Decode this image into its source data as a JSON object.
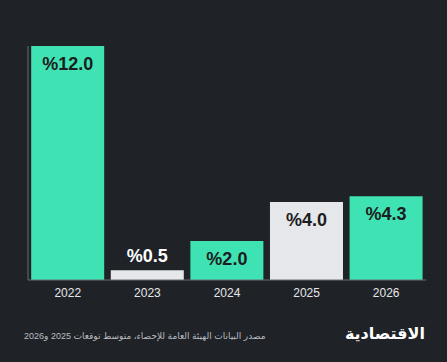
{
  "chart_data": {
    "type": "bar",
    "categories": [
      "2022",
      "2023",
      "2024",
      "2025",
      "2026"
    ],
    "values": [
      12.0,
      0.5,
      2.0,
      4.0,
      4.3
    ],
    "value_labels": [
      "%12.0",
      "%0.5",
      "%2.0",
      "%4.0",
      "%4.3"
    ],
    "colors": [
      "#3fe3b3",
      "#e6e7ea",
      "#3fe3b3",
      "#e6e7ea",
      "#3fe3b3"
    ],
    "ylim": [
      0,
      12.0
    ],
    "data_labels": true,
    "tick_labels": "x",
    "grid": false,
    "annotations": [
      "مصدر البيانات الهيئة العامة للإحصاء، متوسط توقعات 2025 و2026",
      "الاقتصادية"
    ]
  }
}
